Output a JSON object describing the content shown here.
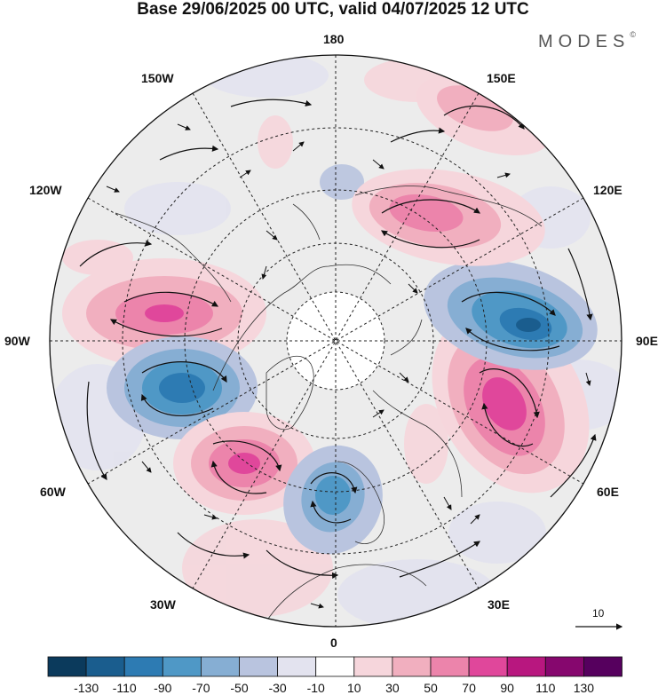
{
  "title": "Base 29/06/2025 00 UTC, valid 04/07/2025 12 UTC",
  "brand": {
    "name": "MODES",
    "mark": "©"
  },
  "longitude_labels": {
    "n180": "180",
    "e150": "150E",
    "e120": "120E",
    "e90": "90E",
    "e60": "60E",
    "e30": "30E",
    "zero": "0",
    "w30": "30W",
    "w60": "60W",
    "w90": "90W",
    "w120": "120W",
    "w150": "150W"
  },
  "vector_scale": {
    "label": "10"
  },
  "colorbar": {
    "labels": [
      "-130",
      "-110",
      "-90",
      "-70",
      "-50",
      "-30",
      "-10",
      "10",
      "30",
      "50",
      "70",
      "90",
      "110",
      "130"
    ],
    "colors": [
      "#0b3a5c",
      "#1a5d8e",
      "#2d7bb3",
      "#4f98c6",
      "#86aed3",
      "#b9c4df",
      "#e3e3ef",
      "#ffffff",
      "#f6d6dc",
      "#f1afbf",
      "#ec84ab",
      "#e0479b",
      "#b8177f",
      "#86076e",
      "#56005e"
    ]
  },
  "map": {
    "projection": "polar stereographic (north pole)",
    "anomalies": [
      {
        "name": "positive-anomaly-north-atlantic-west",
        "sign": "+",
        "level": 70
      },
      {
        "name": "negative-anomaly-hudson",
        "sign": "-",
        "level": -90
      },
      {
        "name": "positive-anomaly-north-atlantic",
        "sign": "+",
        "level": 90
      },
      {
        "name": "negative-anomaly-scandinavia",
        "sign": "-",
        "level": -70
      },
      {
        "name": "positive-anomaly-siberia",
        "sign": "+",
        "level": 110
      },
      {
        "name": "negative-anomaly-east-siberia",
        "sign": "-",
        "level": -110
      },
      {
        "name": "positive-anomaly-east-siberian-sea",
        "sign": "+",
        "level": 70
      },
      {
        "name": "positive-anomaly-pacific",
        "sign": "+",
        "level": 50
      }
    ]
  }
}
